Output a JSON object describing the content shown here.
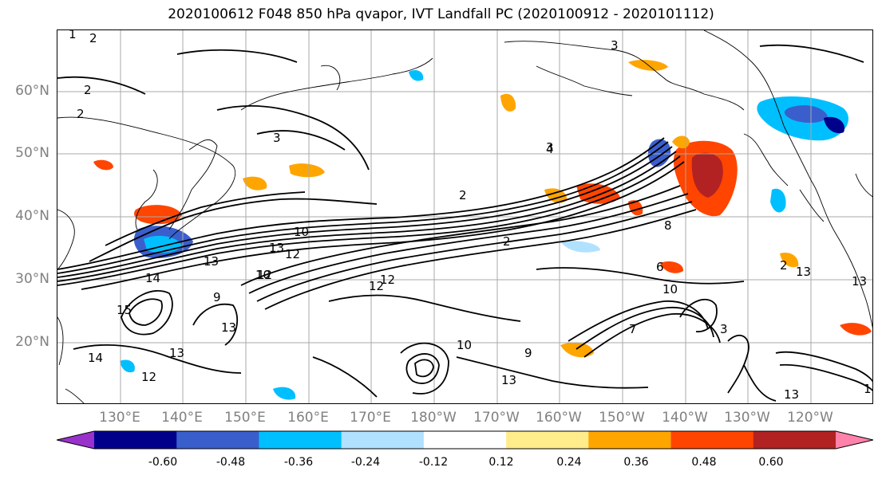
{
  "title": "2020100612 F048 850 hPa qvapor, IVT Landfall PC (2020100912 - 2020101112)",
  "lat_labels": [
    "60°N",
    "50°N",
    "40°N",
    "30°N",
    "20°N"
  ],
  "lon_labels": [
    "130°E",
    "140°E",
    "150°E",
    "160°E",
    "170°E",
    "180°W",
    "170°W",
    "160°W",
    "150°W",
    "140°W",
    "130°W",
    "120°W"
  ],
  "colorbar": {
    "colors": [
      "#9932cc",
      "#00008b",
      "#3a5fcd",
      "#00bfff",
      "#b0e2ff",
      "#ffffff",
      "#ffec8b",
      "#ffa500",
      "#ff4500",
      "#b22222",
      "#ff82ab"
    ],
    "labels": [
      "-0.60",
      "-0.48",
      "-0.36",
      "-0.24",
      "-0.12",
      "0.12",
      "0.24",
      "0.36",
      "0.48",
      "0.60"
    ]
  },
  "contour_labels": [
    "1",
    "2",
    "2",
    "2",
    "3",
    "3",
    "3",
    "4",
    "2",
    "2",
    "13",
    "12",
    "10",
    "13",
    "14",
    "15",
    "12",
    "10",
    "12",
    "13",
    "13",
    "14",
    "12",
    "9",
    "13",
    "10",
    "6",
    "3",
    "2",
    "13",
    "13",
    "1",
    "10",
    "9",
    "13",
    "12",
    "7",
    "8"
  ]
}
